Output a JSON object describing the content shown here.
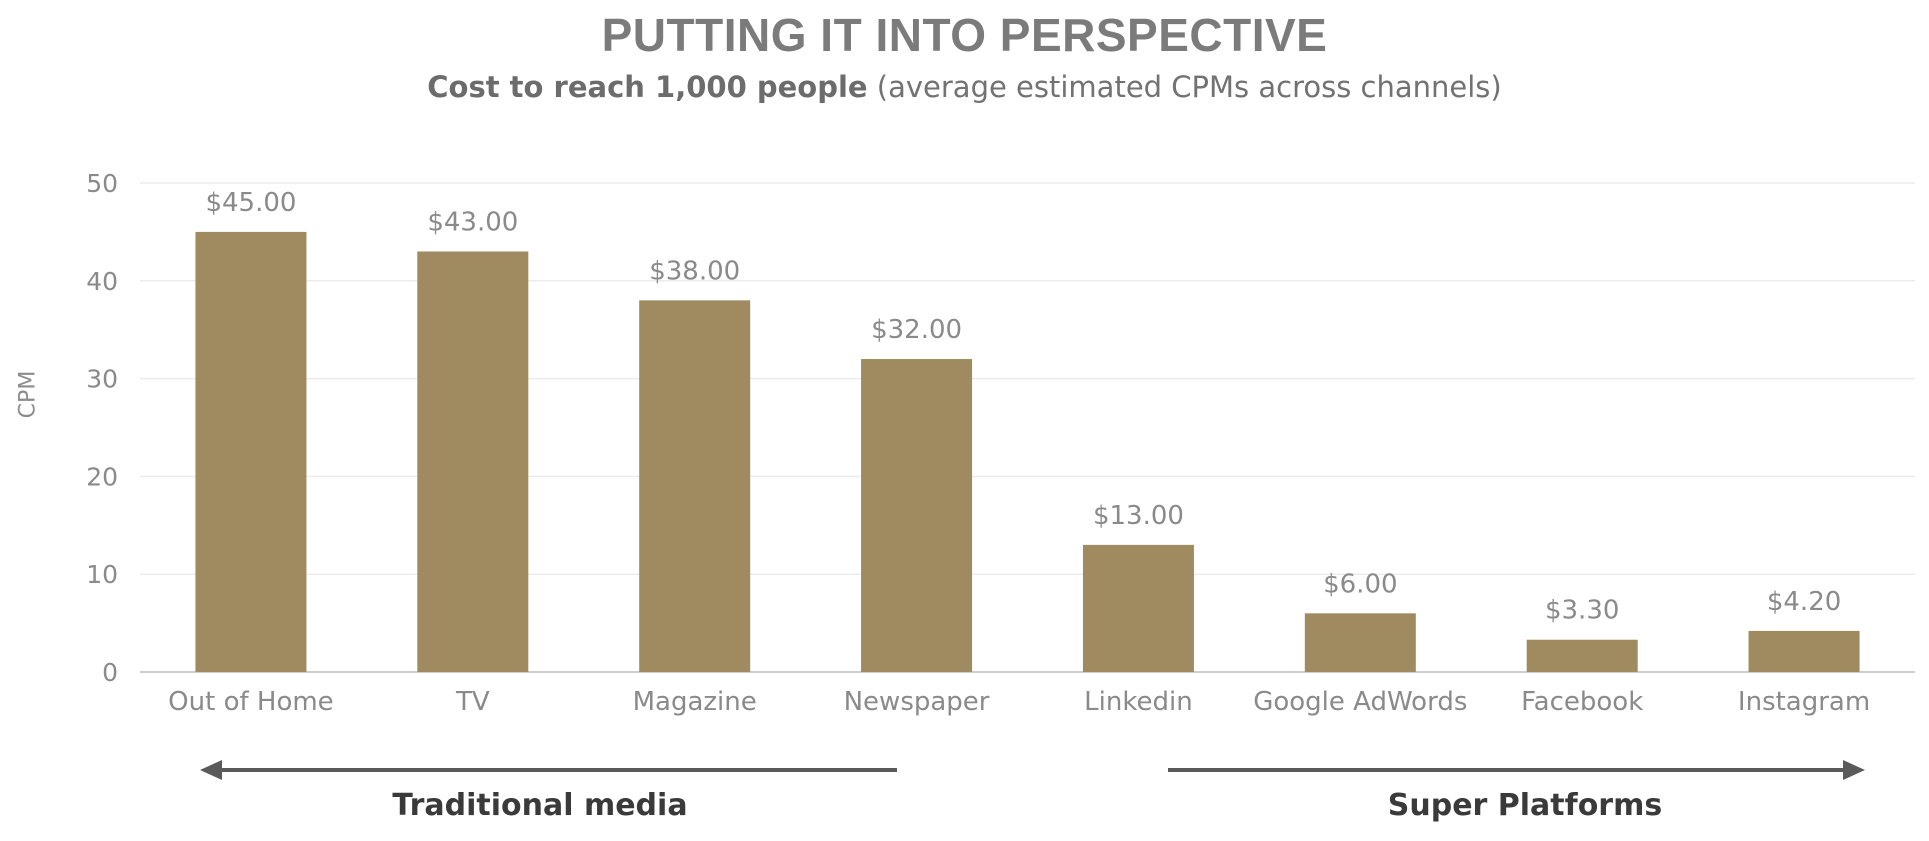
{
  "title": "PUTTING IT INTO PERSPECTIVE",
  "subtitle_bold": "Cost to reach 1,000 people",
  "subtitle_rest": " (average estimated CPMs across channels)",
  "colors": {
    "bar": "#a08a5f",
    "grid": "#ececec",
    "axis": "#cfcfcf",
    "text": "#8a8a8a",
    "arrow": "#5a5a5a"
  },
  "chart_data": {
    "type": "bar",
    "categories": [
      "Out of Home",
      "TV",
      "Magazine",
      "Newspaper",
      "Linkedin",
      "Google AdWords",
      "Facebook",
      "Instagram"
    ],
    "values": [
      45.0,
      43.0,
      38.0,
      32.0,
      13.0,
      6.0,
      3.3,
      4.2
    ],
    "data_labels": [
      "$45.00",
      "$43.00",
      "$38.00",
      "$32.00",
      "$13.00",
      "$6.00",
      "$3.30",
      "$4.20"
    ],
    "ylabel": "CPM",
    "ylim": [
      0,
      50
    ],
    "yticks": [
      0,
      10,
      20,
      30,
      40,
      50
    ],
    "grid": true,
    "groups": [
      {
        "label": "Traditional media",
        "arrow": "left"
      },
      {
        "label": "Super Platforms",
        "arrow": "right"
      }
    ]
  }
}
